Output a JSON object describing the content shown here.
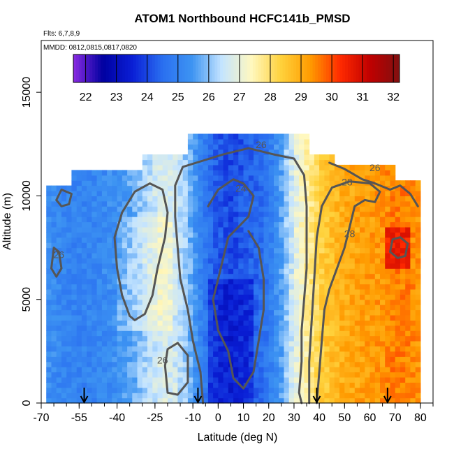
{
  "chart_data": {
    "type": "heatmap",
    "title": "ATOM1 Northbound HCFC141b_PMSD",
    "note_flights": "Flts: 6,7,8,9",
    "note_dates": "MMDD: 0812,0815,0817,0820",
    "xlabel": "Latitude (deg N)",
    "ylabel": "Altitude (m)",
    "xlim": [
      -70,
      85
    ],
    "ylim": [
      0,
      17500
    ],
    "x_ticks": [
      -70,
      -55,
      -40,
      -25,
      -10,
      0,
      10,
      20,
      30,
      40,
      50,
      60,
      70,
      80
    ],
    "x_tick_labels": [
      "-70",
      "-55",
      "-40",
      "-25",
      "-10",
      "0",
      "10",
      "20",
      "30",
      "40",
      "50",
      "60",
      "70",
      "80"
    ],
    "y_ticks": [
      0,
      5000,
      10000,
      15000
    ],
    "y_tick_labels": [
      "0",
      "5000",
      "10000",
      "15000"
    ],
    "colorbar": {
      "min": 21.6,
      "max": 32.2,
      "ticks": [
        22,
        23,
        24,
        25,
        26,
        27,
        28,
        29,
        30,
        31,
        32
      ],
      "tick_labels": [
        "22",
        "23",
        "24",
        "25",
        "26",
        "27",
        "28",
        "29",
        "30",
        "31",
        "32"
      ],
      "colors": [
        "#8a2be2",
        "#0000a0",
        "#0a1fd6",
        "#2a6ff0",
        "#3d94f2",
        "#c4e4ff",
        "#fff8c0",
        "#ffd23c",
        "#ff9a00",
        "#ff2a00",
        "#c00000",
        "#801010"
      ]
    },
    "contour_levels": [
      24,
      26,
      28
    ],
    "contour_labels": [
      "26",
      "24",
      "26",
      "28",
      "28",
      "26",
      "26"
    ],
    "flight_arrow_latitudes": [
      -53,
      -8,
      39,
      67
    ],
    "lat_profile": {
      "lat": [
        -70,
        -62,
        -55,
        -48,
        -40,
        -33,
        -27,
        -22,
        -17,
        -12,
        -8,
        -4,
        0,
        5,
        10,
        15,
        20,
        25,
        30,
        35,
        38,
        41,
        45,
        50,
        55,
        60,
        65,
        70,
        75,
        80
      ],
      "value": [
        25.4,
        25.1,
        25.0,
        25.1,
        25.3,
        25.8,
        26.4,
        26.8,
        26.6,
        26.0,
        25.2,
        24.6,
        24.2,
        24.0,
        24.2,
        24.4,
        24.8,
        25.6,
        26.8,
        27.6,
        28.0,
        28.4,
        28.7,
        29.0,
        29.1,
        29.2,
        29.3,
        29.6,
        29.5,
        29.3
      ]
    }
  }
}
